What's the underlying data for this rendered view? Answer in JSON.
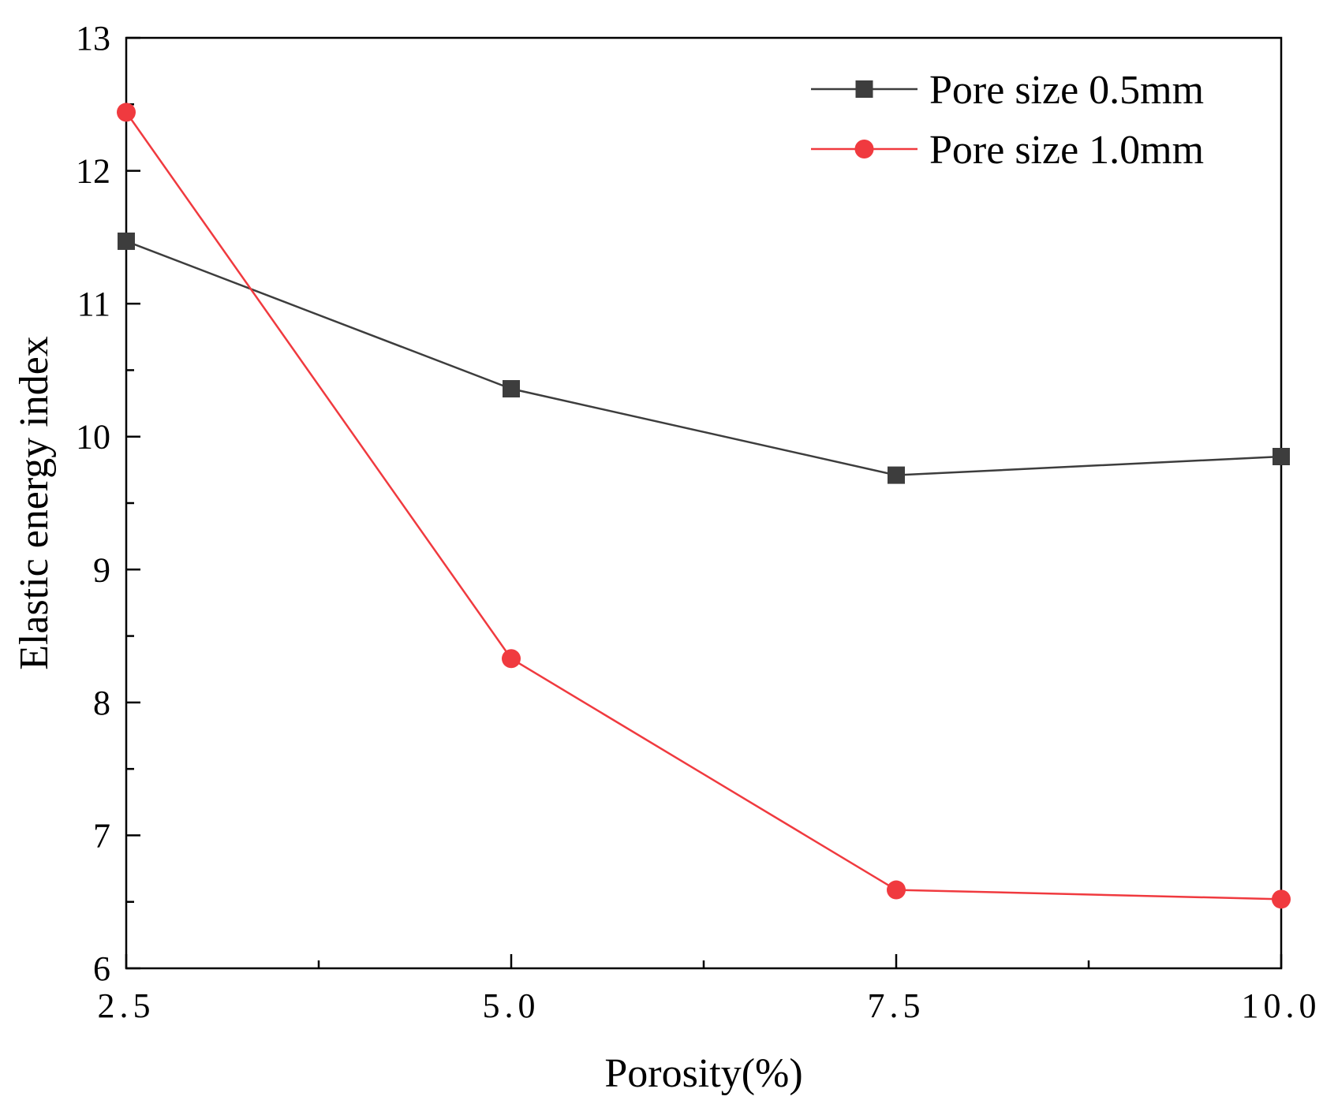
{
  "chart_data": {
    "type": "line",
    "title": "",
    "xlabel": "Porosity(%)",
    "ylabel": "Elastic energy index",
    "x": [
      2.5,
      5.0,
      7.5,
      10.0
    ],
    "x_tick_labels": [
      "2.5",
      "5.0",
      "7.5",
      "10.0"
    ],
    "y_tick_labels": [
      "6",
      "7",
      "8",
      "9",
      "10",
      "11",
      "12",
      "13"
    ],
    "xlim": [
      2.5,
      10.0
    ],
    "ylim": [
      6,
      13
    ],
    "grid": false,
    "legend_position": "top-right",
    "series": [
      {
        "name": "Pore size 0.5mm",
        "values": [
          11.47,
          10.36,
          9.71,
          9.85
        ],
        "color": "#3d3d3d",
        "marker": "square"
      },
      {
        "name": "Pore size 1.0mm",
        "values": [
          12.44,
          8.33,
          6.59,
          6.52
        ],
        "color": "#f03a3f",
        "marker": "circle"
      }
    ]
  }
}
